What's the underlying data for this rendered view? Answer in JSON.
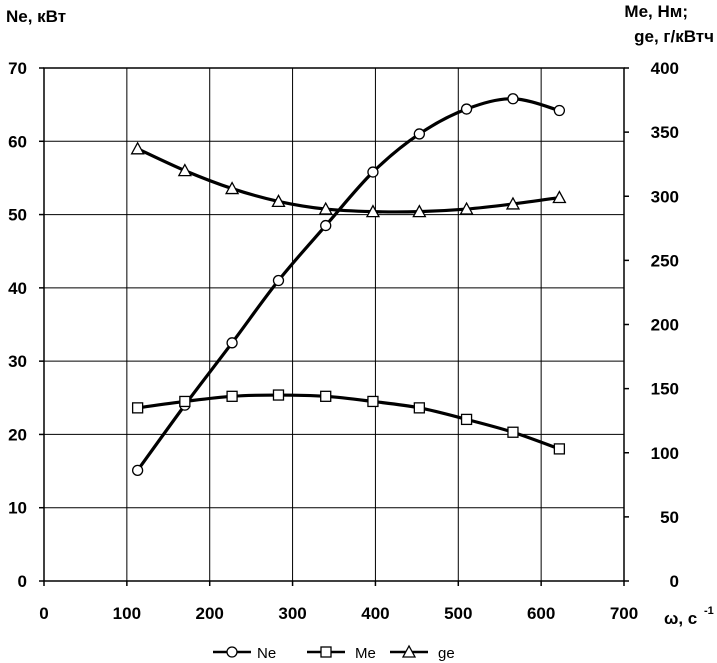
{
  "chart_data": {
    "type": "line",
    "x_axis": {
      "label": "ω, с",
      "label_superscript": "-1",
      "range": [
        0,
        700
      ],
      "ticks": [
        0,
        100,
        200,
        300,
        400,
        500,
        600,
        700
      ],
      "tick_labels": [
        "0",
        "100",
        "200",
        "300",
        "400",
        "500",
        "600",
        "700"
      ]
    },
    "y_left": {
      "label": "Ne, кВт",
      "range": [
        0,
        70
      ],
      "ticks": [
        0,
        10,
        20,
        30,
        40,
        50,
        60,
        70
      ],
      "tick_labels": [
        "0",
        "10",
        "20",
        "30",
        "40",
        "50",
        "60",
        "70"
      ]
    },
    "y_right": {
      "label_line1": "Me, Нм;",
      "label_line2": "ge,  г/кВтч",
      "range": [
        0,
        400
      ],
      "ticks": [
        0,
        50,
        100,
        150,
        200,
        250,
        300,
        350,
        400
      ],
      "tick_labels": [
        "0",
        "50",
        "100",
        "150",
        "200",
        "250",
        "300",
        "350",
        "400"
      ]
    },
    "grid": true,
    "legend_position": "bottom",
    "series": [
      {
        "name": "Ne",
        "axis": "left",
        "marker": "circle",
        "x": [
          113,
          170,
          227,
          283,
          340,
          397,
          453,
          510,
          566,
          622
        ],
        "y": [
          15.1,
          24.0,
          32.5,
          41.0,
          48.5,
          55.8,
          61.0,
          64.4,
          65.8,
          64.2
        ]
      },
      {
        "name": "Me",
        "axis": "right",
        "marker": "square",
        "x": [
          113,
          170,
          227,
          283,
          340,
          397,
          453,
          510,
          566,
          622
        ],
        "y": [
          135,
          140,
          144,
          145,
          144,
          140,
          135,
          126,
          116,
          103
        ]
      },
      {
        "name": "ge",
        "axis": "right",
        "marker": "triangle",
        "x": [
          113,
          170,
          227,
          283,
          340,
          397,
          453,
          510,
          566,
          622
        ],
        "y": [
          337,
          320,
          306,
          296,
          290,
          288,
          288,
          290,
          294,
          299
        ]
      }
    ]
  }
}
